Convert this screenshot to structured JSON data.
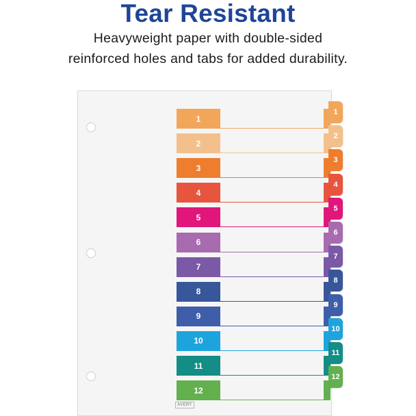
{
  "headline": "Tear Resistant",
  "subhead": {
    "line1": "Heavyweight paper with double-sided",
    "line2": "reinforced holes and tabs for added durability."
  },
  "logo_text": "AVERY",
  "dividers": [
    {
      "label": "1",
      "color": "#f2a65a"
    },
    {
      "label": "2",
      "color": "#f3c08c"
    },
    {
      "label": "3",
      "color": "#ee7d2d"
    },
    {
      "label": "4",
      "color": "#e8553e"
    },
    {
      "label": "5",
      "color": "#e0167b"
    },
    {
      "label": "6",
      "color": "#a96baf"
    },
    {
      "label": "7",
      "color": "#7b59a6"
    },
    {
      "label": "8",
      "color": "#37579a"
    },
    {
      "label": "9",
      "color": "#3f5eaa"
    },
    {
      "label": "10",
      "color": "#1ea4dc"
    },
    {
      "label": "11",
      "color": "#138d85"
    },
    {
      "label": "12",
      "color": "#63b04f"
    }
  ]
}
